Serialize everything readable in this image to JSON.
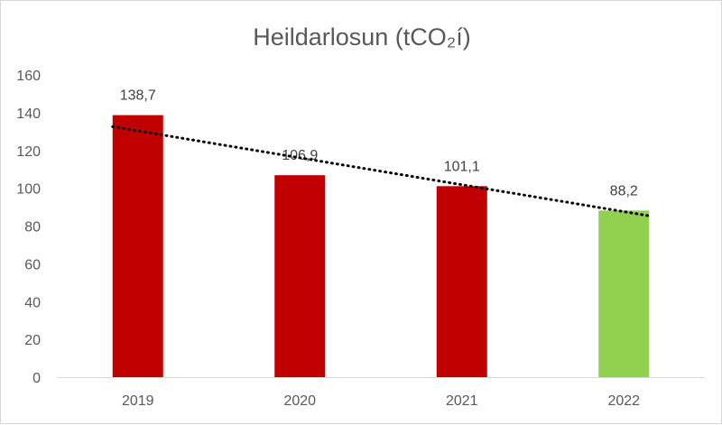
{
  "chart_data": {
    "type": "bar",
    "title": "Heildarlosun (tCO₂í)",
    "categories": [
      "2019",
      "2020",
      "2021",
      "2022"
    ],
    "values": [
      138.7,
      106.9,
      101.1,
      88.2
    ],
    "data_labels": [
      "138,7",
      "106,9",
      "101,1",
      "88,2"
    ],
    "bar_colors": [
      "#c00000",
      "#c00000",
      "#c00000",
      "#92d050"
    ],
    "ylim": [
      0,
      160
    ],
    "yticks": [
      0,
      20,
      40,
      60,
      80,
      100,
      120,
      140,
      160
    ],
    "xlabel": "",
    "ylabel": "",
    "grid": false,
    "legend": "none",
    "trendline": {
      "type": "linear",
      "style": "dotted",
      "color": "#000000",
      "y_start": 132.6,
      "y_end": 85.4
    },
    "axis_color": "#d9d9d9",
    "text_color": "#595959"
  }
}
